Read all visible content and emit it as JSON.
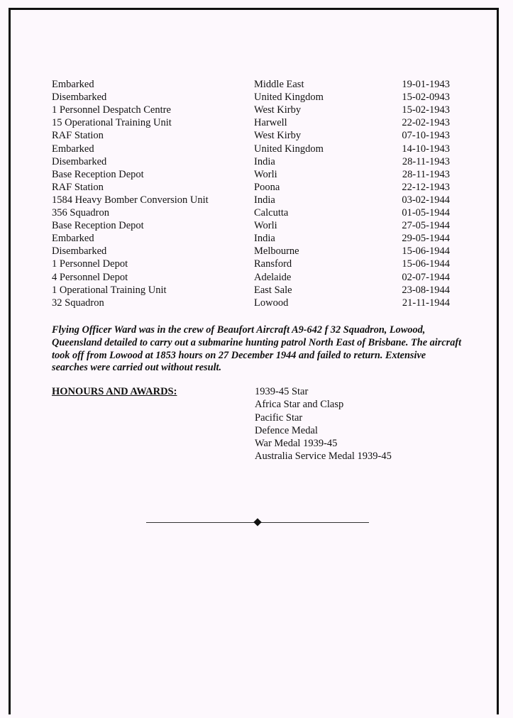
{
  "service_history": [
    {
      "unit": "Embarked",
      "location": "Middle East",
      "date": "19-01-1943"
    },
    {
      "unit": "Disembarked",
      "location": "United Kingdom",
      "date": "15-02-0943"
    },
    {
      "unit": "1 Personnel Despatch Centre",
      "location": "West Kirby",
      "date": "15-02-1943"
    },
    {
      "unit": "15 Operational Training Unit",
      "location": "Harwell",
      "date": "22-02-1943"
    },
    {
      "unit": "RAF Station",
      "location": "West Kirby",
      "date": "07-10-1943"
    },
    {
      "unit": "Embarked",
      "location": "United Kingdom",
      "date": "14-10-1943"
    },
    {
      "unit": "Disembarked",
      "location": "India",
      "date": "28-11-1943"
    },
    {
      "unit": "Base Reception Depot",
      "location": "Worli",
      "date": "28-11-1943"
    },
    {
      "unit": "RAF Station",
      "location": "Poona",
      "date": "22-12-1943"
    },
    {
      "unit": "1584 Heavy Bomber Conversion Unit",
      "location": "India",
      "date": "03-02-1944"
    },
    {
      "unit": "356 Squadron",
      "location": "Calcutta",
      "date": "01-05-1944"
    },
    {
      "unit": "Base Reception Depot",
      "location": "Worli",
      "date": "27-05-1944"
    },
    {
      "unit": "Embarked",
      "location": "India",
      "date": "29-05-1944"
    },
    {
      "unit": "Disembarked",
      "location": "Melbourne",
      "date": "15-06-1944"
    },
    {
      "unit": "1 Personnel Depot",
      "location": "Ransford",
      "date": "15-06-1944"
    },
    {
      "unit": "4 Personnel Depot",
      "location": "Adelaide",
      "date": "02-07-1944"
    },
    {
      "unit": "1 Operational Training Unit",
      "location": "East Sale",
      "date": "23-08-1944"
    },
    {
      "unit": "32 Squadron",
      "location": "Lowood",
      "date": "21-11-1944"
    }
  ],
  "narrative": "Flying Officer Ward was in the crew of Beaufort Aircraft A9-642 f 32 Squadron, Lowood, Queensland detailed to carry out a submarine hunting patrol North East of Brisbane.  The aircraft took off from Lowood at 1853 hours on 27 December 1944 and failed to return. Extensive searches were carried out without result.",
  "honours": {
    "heading": "HONOURS AND AWARDS:",
    "items": [
      "1939-45 Star",
      "Africa Star and Clasp",
      "Pacific Star",
      "Defence Medal",
      "War Medal 1939-45",
      "Australia Service Medal 1939-45"
    ]
  }
}
